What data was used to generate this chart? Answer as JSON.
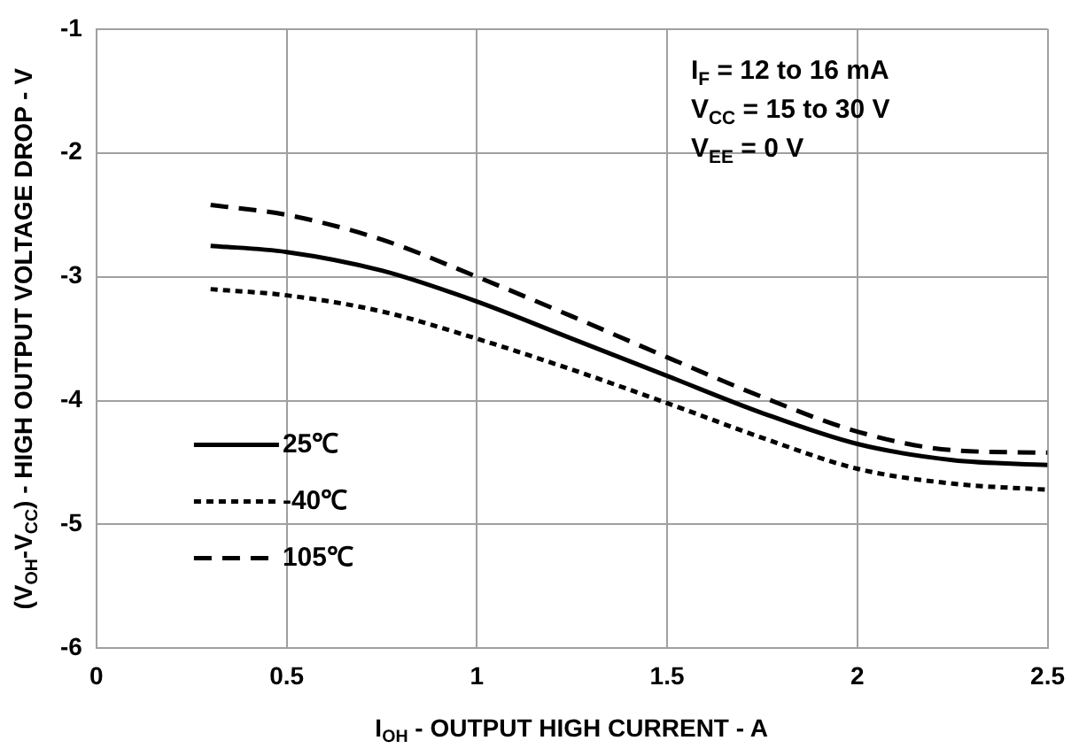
{
  "chart_data": {
    "type": "line",
    "xlabel": "I$_{OH}$ - OUTPUT HIGH CURRENT - A",
    "ylabel": "(V$_{OH}$-V$_{CC}$) - HIGH OUTPUT VOLTAGE DROP - V",
    "x": [
      0.3,
      0.5,
      0.75,
      1,
      1.25,
      1.5,
      1.75,
      2,
      2.25,
      2.5
    ],
    "series": [
      {
        "name": "25℃",
        "color": "#000000",
        "line_style": "solid",
        "values": [
          -2.75,
          -2.8,
          -2.95,
          -3.2,
          -3.5,
          -3.8,
          -4.1,
          -4.35,
          -4.48,
          -4.52
        ]
      },
      {
        "name": "-40℃",
        "color": "#000000",
        "line_style": "dotted",
        "values": [
          -3.1,
          -3.15,
          -3.28,
          -3.5,
          -3.75,
          -4.02,
          -4.3,
          -4.55,
          -4.67,
          -4.72
        ]
      },
      {
        "name": "105℃",
        "color": "#000000",
        "line_style": "dashed",
        "values": [
          -2.42,
          -2.5,
          -2.7,
          -3.0,
          -3.32,
          -3.65,
          -3.97,
          -4.25,
          -4.4,
          -4.42
        ]
      }
    ],
    "xlim": [
      0,
      2.5
    ],
    "xticks": [
      0,
      0.5,
      1,
      1.5,
      2,
      2.5
    ],
    "ylim": [
      -6,
      -1
    ],
    "yticks": [
      -6,
      -5,
      -4,
      -3,
      -2,
      -1
    ],
    "grid": true,
    "legend": "bottom left",
    "marker": "none",
    "annotations": [
      "I$_{F}$ = 12 to 16 mA",
      "V$_{CC}$ = 15 to 30 V",
      "V$_{EE}$ = 0 V"
    ]
  }
}
